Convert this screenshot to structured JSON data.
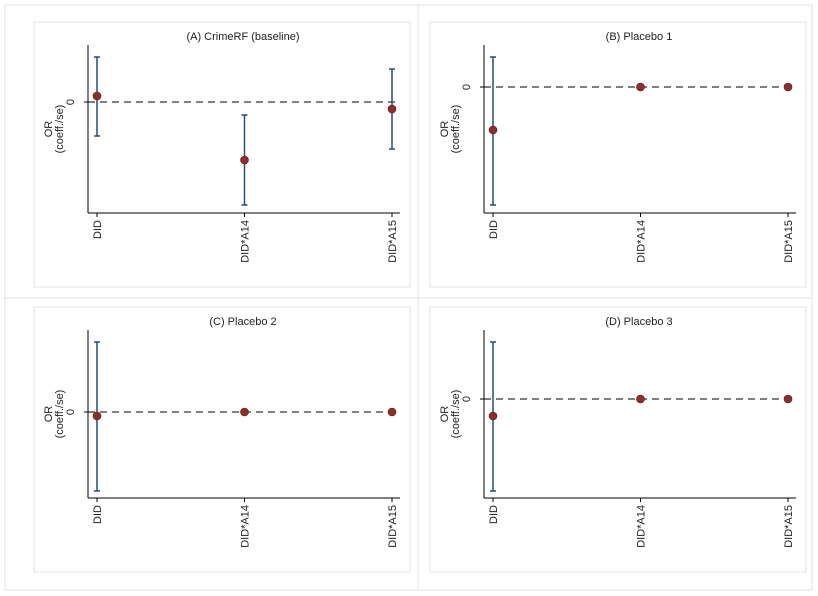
{
  "chart_data": [
    {
      "type": "coefplot",
      "title": "(A) CrimeRF (baseline)",
      "ylabel": [
        "OR",
        "(coeff./se)"
      ],
      "categories": [
        "DID",
        "DID*A14",
        "DID*A15"
      ],
      "values": [
        0.12,
        -1.16,
        -0.14
      ],
      "lower": [
        -0.68,
        -2.06,
        -0.94
      ],
      "upper": [
        0.9,
        -0.26,
        0.66
      ],
      "ylim": [
        -2.22,
        1.14
      ],
      "yticks": [
        0
      ],
      "marker_color": "#8b2e2e",
      "bar_color": "#1f4e79"
    },
    {
      "type": "coefplot",
      "title": "(B) Placebo 1",
      "ylabel": [
        "OR",
        "(coeff./se)"
      ],
      "categories": [
        "DID",
        "DID*A14",
        "DID*A15"
      ],
      "values": [
        -0.86,
        0,
        0
      ],
      "lower": [
        -2.36,
        0,
        0
      ],
      "upper": [
        0.6,
        0,
        0
      ],
      "ylim": [
        -2.52,
        0.84
      ],
      "yticks": [
        0
      ],
      "marker_color": "#8b2e2e",
      "bar_color": "#1f4e79"
    },
    {
      "type": "coefplot",
      "title": "(C) Placebo 2",
      "ylabel": [
        "OR",
        "(coeff./se)"
      ],
      "categories": [
        "DID",
        "DID*A14",
        "DID*A15"
      ],
      "values": [
        -0.08,
        0,
        0
      ],
      "lower": [
        -1.58,
        0,
        0
      ],
      "upper": [
        1.4,
        0,
        0
      ],
      "ylim": [
        -1.72,
        1.64
      ],
      "yticks": [
        0
      ],
      "marker_color": "#8b2e2e",
      "bar_color": "#1f4e79"
    },
    {
      "type": "coefplot",
      "title": "(D) Placebo 3",
      "ylabel": [
        "OR",
        "(coeff./se)"
      ],
      "categories": [
        "DID",
        "DID*A14",
        "DID*A15"
      ],
      "values": [
        -0.34,
        0,
        0
      ],
      "lower": [
        -1.84,
        0,
        0
      ],
      "upper": [
        1.14,
        0,
        0
      ],
      "ylim": [
        -1.98,
        1.38
      ],
      "yticks": [
        0
      ],
      "marker_color": "#8b2e2e",
      "bar_color": "#1f4e79"
    }
  ]
}
